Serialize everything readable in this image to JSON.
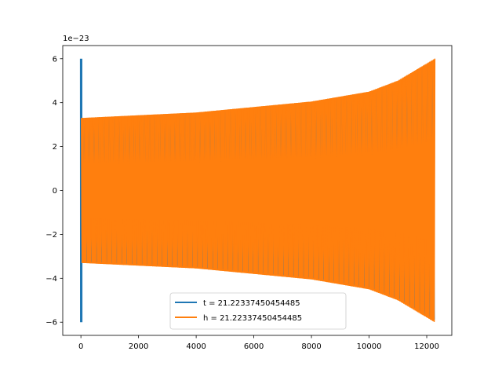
{
  "chart_data": {
    "type": "line",
    "title": "",
    "xlabel": "",
    "ylabel": "",
    "y_offset_text": "1e−23",
    "xlim": [
      -630,
      12870
    ],
    "ylim": [
      -6.6,
      6.6
    ],
    "xticks": [
      0,
      2000,
      4000,
      6000,
      8000,
      10000,
      12000
    ],
    "xtick_labels": [
      "0",
      "2000",
      "4000",
      "6000",
      "8000",
      "10000",
      "12000"
    ],
    "yticks": [
      -6,
      -4,
      -2,
      0,
      2,
      4,
      6
    ],
    "ytick_labels": [
      "−6",
      "−4",
      "−2",
      "0",
      "2",
      "4",
      "6"
    ],
    "grid": false,
    "legend_position": "bottom-center",
    "series": [
      {
        "name": "t = 21.22337450454485",
        "color": "#1f77b4",
        "description": "a short tall spike near x=0 reaching ±6",
        "x_range": [
          0,
          20
        ],
        "amplitude": 6.0
      },
      {
        "name": "h = 21.22337450454485",
        "color": "#ff7f0e",
        "description": "oscillating chirp waveform whose envelope grows from ±3.3 to ±6",
        "x_range": [
          20,
          12280
        ],
        "envelope": {
          "x": [
            20,
            4000,
            8000,
            10000,
            11000,
            12280
          ],
          "amplitude": [
            3.3,
            3.55,
            4.05,
            4.5,
            5.0,
            6.0
          ]
        }
      }
    ]
  }
}
